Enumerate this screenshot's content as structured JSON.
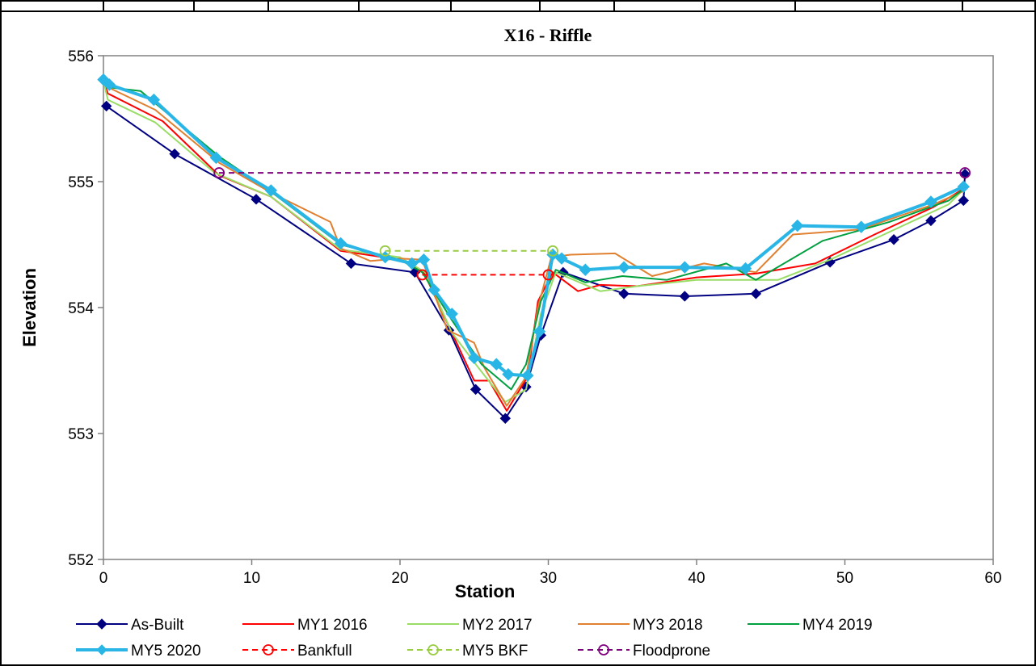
{
  "chart_data": {
    "type": "line",
    "title": "X16 - Riffle",
    "xlabel": "Station",
    "ylabel": "Elevation",
    "xlim": [
      0,
      60
    ],
    "ylim": [
      552,
      556
    ],
    "x_ticks": [
      "0",
      "10",
      "20",
      "30",
      "40",
      "50",
      "60"
    ],
    "y_ticks": [
      "552",
      "553",
      "554",
      "555",
      "556"
    ],
    "grid": false,
    "legend_position": "bottom",
    "series": [
      {
        "name": "As-Built",
        "color": "#000080",
        "dash": "",
        "marker": "diamond",
        "marker_fill": "#000080",
        "width": 2,
        "x": [
          0.2,
          4.8,
          10.3,
          16.7,
          21.0,
          23.3,
          25.1,
          27.1,
          28.5,
          29.5,
          31.0,
          35.1,
          39.2,
          44.0,
          49.0,
          53.3,
          55.8,
          58.0,
          58.1
        ],
        "y": [
          555.6,
          555.22,
          554.86,
          554.35,
          554.28,
          553.82,
          553.35,
          553.12,
          553.37,
          553.78,
          554.28,
          554.11,
          554.09,
          554.11,
          554.36,
          554.54,
          554.69,
          554.85,
          555.06
        ]
      },
      {
        "name": "MY1 2016",
        "color": "#ff0000",
        "dash": "",
        "marker": "none",
        "width": 2,
        "x": [
          0,
          0.3,
          4.0,
          7.8,
          11.3,
          16.0,
          20.0,
          21.6,
          23.5,
          25.0,
          26.0,
          27.2,
          28.6,
          29.3,
          30.3,
          32.0,
          33.5,
          36.0,
          40.0,
          44.0,
          48.0,
          52.0,
          56.0,
          58.1
        ],
        "y": [
          555.8,
          555.7,
          555.48,
          555.05,
          554.88,
          554.45,
          554.38,
          554.28,
          553.8,
          553.42,
          553.42,
          553.18,
          553.45,
          554.05,
          554.28,
          554.13,
          554.18,
          554.17,
          554.24,
          554.27,
          554.35,
          554.58,
          554.8,
          554.95
        ]
      },
      {
        "name": "MY2 2017",
        "color": "#99dd66",
        "dash": "",
        "marker": "none",
        "width": 2,
        "x": [
          0,
          0.3,
          3.5,
          7.5,
          11.3,
          16.0,
          20.0,
          21.7,
          23.5,
          25.3,
          27.1,
          28.5,
          29.5,
          30.5,
          33.5,
          36.0,
          40.0,
          45.5,
          49.0,
          53.0,
          57.0,
          58.1
        ],
        "y": [
          555.8,
          555.65,
          555.47,
          555.07,
          554.88,
          554.46,
          554.4,
          554.28,
          553.8,
          553.52,
          553.25,
          553.35,
          553.95,
          554.28,
          554.13,
          554.17,
          554.22,
          554.22,
          554.38,
          554.6,
          554.82,
          554.95
        ]
      },
      {
        "name": "MY3 2018",
        "color": "#e08030",
        "dash": "",
        "marker": "none",
        "width": 2,
        "x": [
          0,
          0.3,
          3.5,
          7.8,
          11.5,
          15.3,
          16.0,
          18.0,
          20.0,
          21.5,
          23.2,
          24.5,
          25.0,
          25.7,
          27.2,
          28.5,
          29.3,
          30.2,
          31.5,
          34.5,
          37.0,
          40.5,
          44.0,
          46.5,
          51.0,
          56.0,
          58.1
        ],
        "y": [
          555.8,
          555.75,
          555.57,
          555.15,
          554.9,
          554.68,
          554.47,
          554.37,
          554.39,
          554.38,
          553.82,
          553.75,
          553.72,
          553.52,
          553.22,
          553.45,
          554.0,
          554.4,
          554.42,
          554.43,
          554.25,
          554.35,
          554.28,
          554.58,
          554.62,
          554.82,
          554.93
        ]
      },
      {
        "name": "MY4 2019",
        "color": "#00a040",
        "dash": "",
        "marker": "none",
        "width": 2,
        "x": [
          0,
          0.3,
          2.5,
          7.8,
          11.3,
          16.0,
          20.0,
          21.5,
          23.5,
          25.5,
          27.5,
          28.5,
          29.5,
          30.5,
          32.5,
          35.0,
          38.0,
          42.0,
          44.0,
          48.5,
          53.0,
          57.0,
          58.1
        ],
        "y": [
          555.8,
          555.75,
          555.72,
          555.2,
          554.92,
          554.5,
          554.38,
          554.28,
          553.9,
          553.55,
          553.35,
          553.55,
          554.05,
          554.3,
          554.2,
          554.25,
          554.22,
          554.35,
          554.22,
          554.53,
          554.68,
          554.85,
          554.95
        ]
      },
      {
        "name": "MY5 2020",
        "color": "#29b6e6",
        "dash": "",
        "marker": "diamond",
        "marker_fill": "#29b6e6",
        "width": 4,
        "x": [
          0.0,
          0.4,
          3.4,
          7.6,
          11.3,
          16.0,
          19.0,
          20.8,
          21.6,
          22.3,
          23.5,
          25.0,
          26.5,
          27.3,
          28.6,
          29.4,
          30.3,
          30.9,
          32.5,
          35.1,
          39.2,
          43.3,
          46.8,
          51.1,
          55.8,
          58.0
        ],
        "y": [
          555.81,
          555.77,
          555.65,
          555.19,
          554.93,
          554.51,
          554.4,
          554.35,
          554.38,
          554.14,
          553.95,
          553.6,
          553.55,
          553.47,
          553.46,
          553.81,
          554.42,
          554.39,
          554.3,
          554.32,
          554.32,
          554.31,
          554.65,
          554.64,
          554.84,
          554.96
        ]
      },
      {
        "name": "Bankfull",
        "color": "#ff0000",
        "dash": "7,5",
        "marker": "circle",
        "width": 2,
        "x": [
          21.5,
          30.0
        ],
        "y": [
          554.26,
          554.26
        ]
      },
      {
        "name": "MY5 BKF",
        "color": "#99cc44",
        "dash": "7,5",
        "marker": "circle",
        "width": 2,
        "x": [
          19.0,
          30.3
        ],
        "y": [
          554.45,
          554.45
        ]
      },
      {
        "name": "Floodprone",
        "color": "#800080",
        "dash": "7,5",
        "marker": "circle",
        "width": 2,
        "x": [
          7.8,
          58.1
        ],
        "y": [
          555.07,
          555.07
        ]
      }
    ]
  }
}
